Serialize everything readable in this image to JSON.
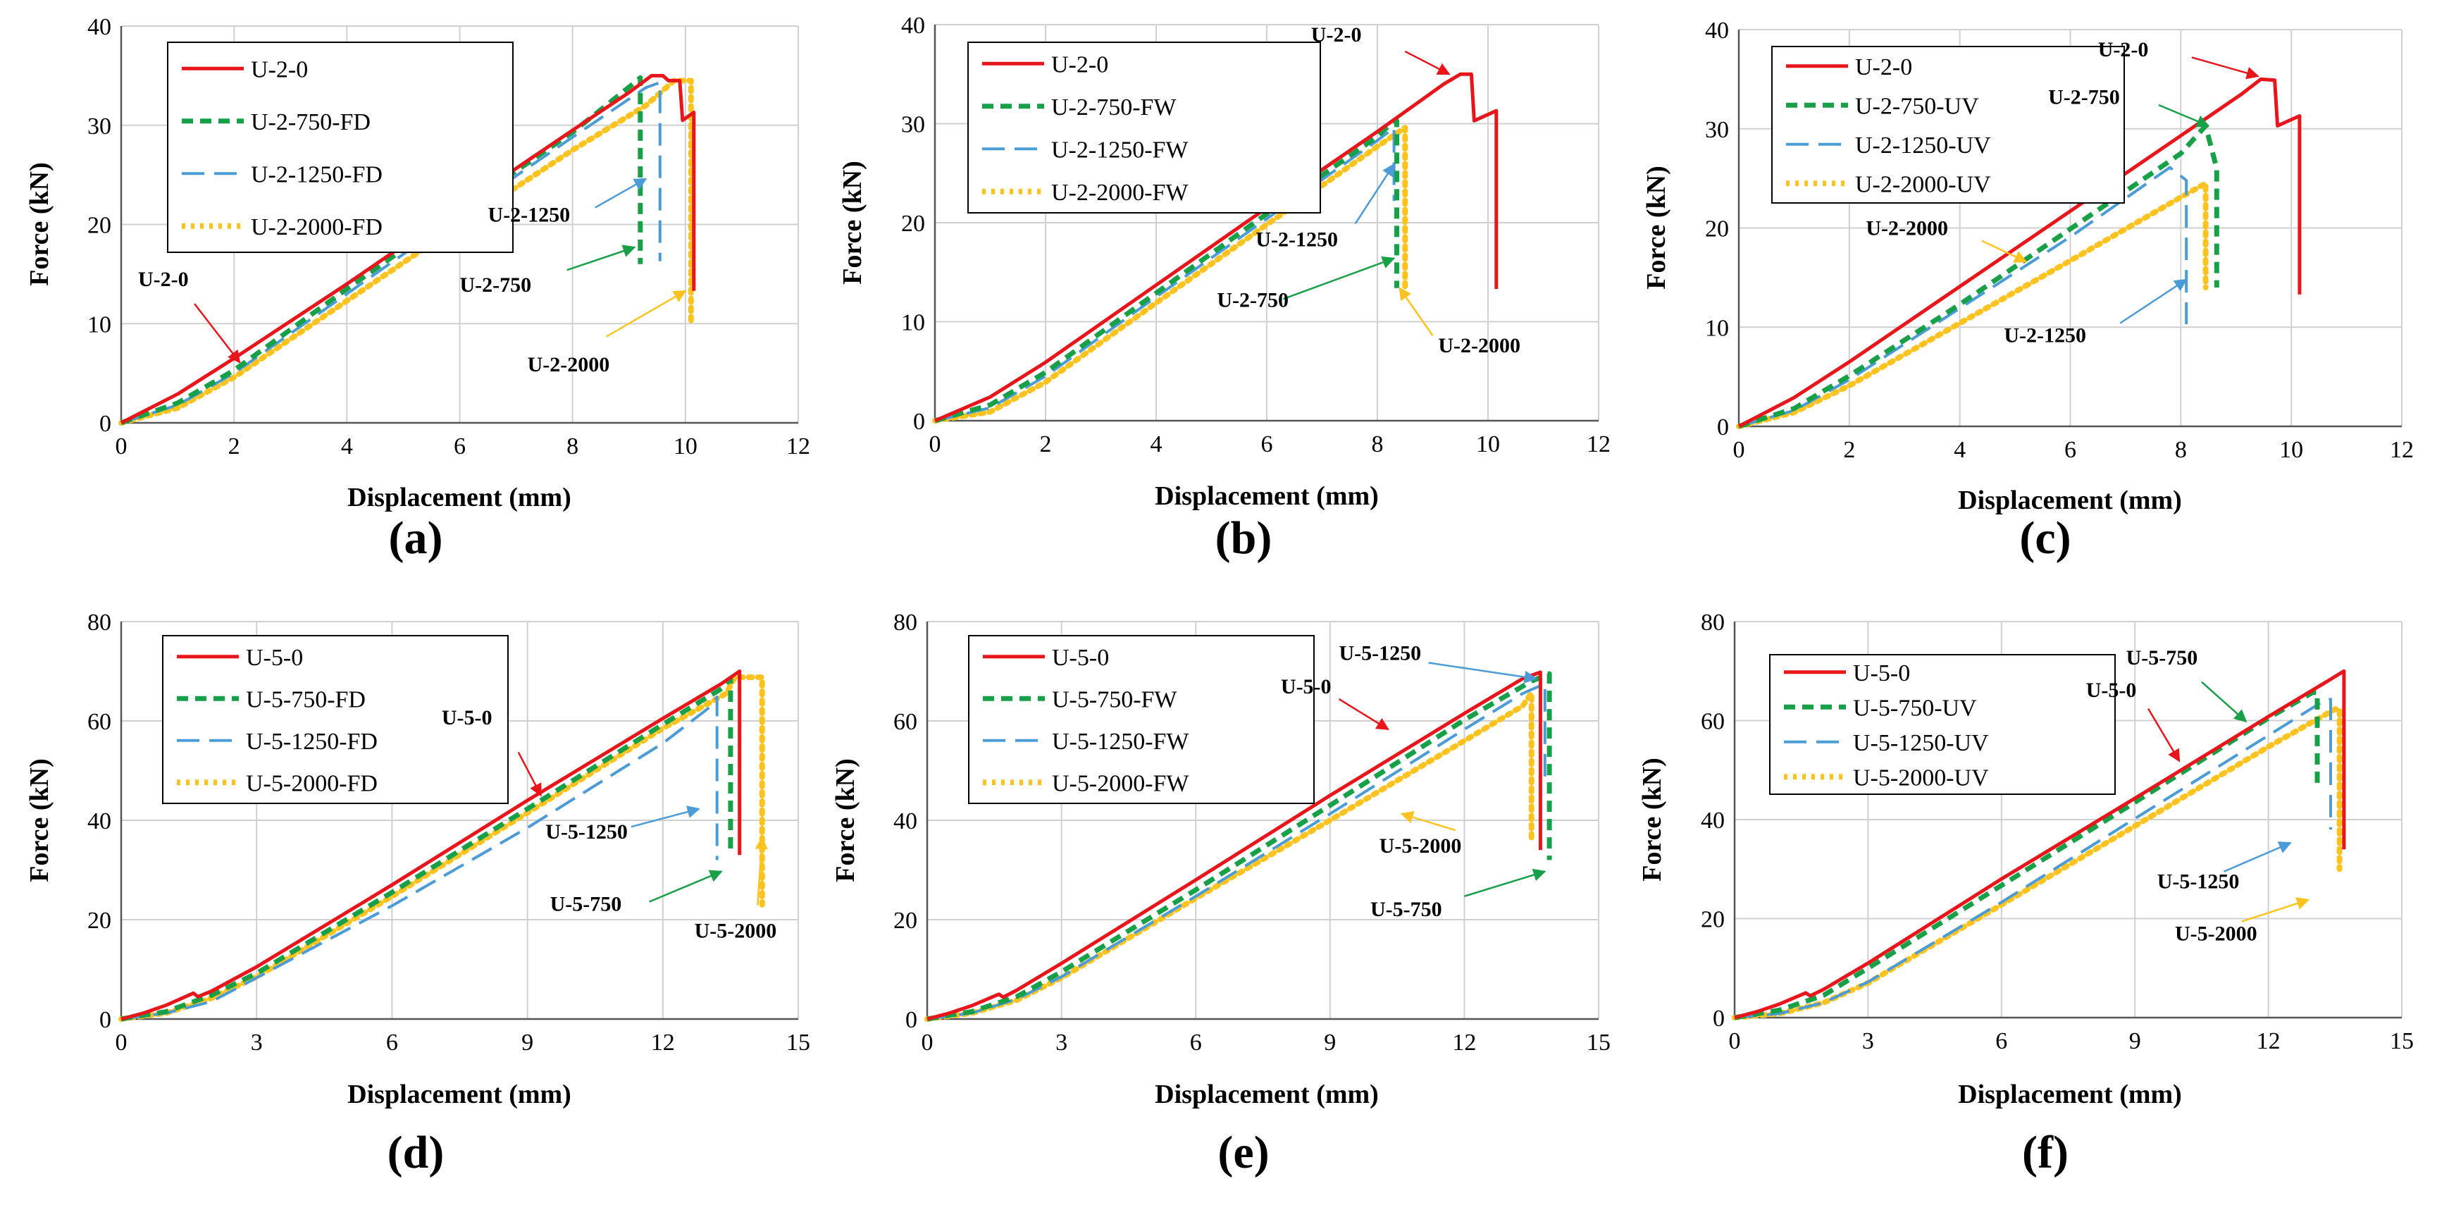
{
  "figure": {
    "xlabel": "Displacement (mm)",
    "ylabel": "Force (kN)",
    "colors": {
      "ref": "#e8151b",
      "s750": "#17a047",
      "s1250": "#4a9bd6",
      "s2000": "#fcc320"
    }
  },
  "chart_data": [
    {
      "type": "line",
      "panel_label": "(a)",
      "xlim": [
        0,
        12
      ],
      "ylim": [
        0,
        40
      ],
      "xticks": [
        "0",
        "2",
        "4",
        "6",
        "8",
        "10",
        "12"
      ],
      "yticks": [
        "0",
        "10",
        "20",
        "30",
        "40"
      ],
      "grid": true,
      "series": [
        {
          "name": "U-2-0",
          "x": [
            0,
            1,
            2,
            4,
            6,
            8,
            9.0,
            9.4,
            9.6,
            9.7,
            9.9,
            9.95,
            10.15,
            10.15
          ],
          "y": [
            0,
            2.9,
            6.5,
            14,
            21.8,
            29.5,
            33.3,
            35,
            35,
            34.5,
            34.5,
            30.5,
            31.3,
            13.3
          ]
        },
        {
          "name": "U-2-750-FD",
          "x": [
            0,
            1,
            2,
            4,
            6,
            8,
            9.1,
            9.2,
            9.2
          ],
          "y": [
            0,
            2.0,
            5.3,
            13.5,
            21.5,
            29.3,
            34.3,
            34.8,
            16
          ]
        },
        {
          "name": "U-2-1250-FD",
          "x": [
            0,
            1,
            2,
            4,
            6,
            8,
            9.3,
            9.55,
            9.55
          ],
          "y": [
            0,
            1.8,
            5.0,
            13.0,
            21.0,
            28.8,
            33.8,
            34.3,
            16.3
          ]
        },
        {
          "name": "U-2-2000-FD",
          "x": [
            0,
            1,
            2,
            4,
            6,
            8,
            9.3,
            9.8,
            10.1,
            10.1
          ],
          "y": [
            0,
            1.5,
            4.6,
            12.3,
            20,
            27.5,
            32,
            34.5,
            34.5,
            10
          ]
        }
      ],
      "annotations": [
        {
          "text": "U-2-0",
          "tx": 0.3,
          "ty": 13.8,
          "ax": 1.3,
          "ay": 12,
          "hx": 2.1,
          "hy": 6.1,
          "c": "ref"
        },
        {
          "text": "U-2-1250",
          "tx": 6.5,
          "ty": 20.3,
          "ax": 8.4,
          "ay": 21.7,
          "hx": 9.3,
          "hy": 24.6,
          "c": "s1250"
        },
        {
          "text": "U-2-750",
          "tx": 6.0,
          "ty": 13.2,
          "ax": 7.9,
          "ay": 15.4,
          "hx": 9.1,
          "hy": 17.7,
          "c": "s750"
        },
        {
          "text": "U-2-2000",
          "tx": 7.2,
          "ty": 5.2,
          "ax": 8.6,
          "ay": 8.7,
          "hx": 10.0,
          "hy": 13.3,
          "c": "s2000"
        }
      ]
    },
    {
      "type": "line",
      "panel_label": "(b)",
      "xlim": [
        0,
        12
      ],
      "ylim": [
        0,
        40
      ],
      "xticks": [
        "0",
        "2",
        "4",
        "6",
        "8",
        "10",
        "12"
      ],
      "yticks": [
        "0",
        "10",
        "20",
        "30",
        "40"
      ],
      "grid": true,
      "series": [
        {
          "name": "U-2-0",
          "x": [
            0,
            1,
            2,
            4,
            6,
            8,
            9.2,
            9.5,
            9.7,
            9.75,
            10.15,
            10.15
          ],
          "y": [
            0,
            2.4,
            5.9,
            13.7,
            21.5,
            29.2,
            34,
            35,
            35,
            30.3,
            31.3,
            13.3
          ]
        },
        {
          "name": "U-2-750-FW",
          "x": [
            0,
            1,
            2,
            4,
            6,
            8,
            8.3,
            8.35,
            8.35
          ],
          "y": [
            0,
            1.6,
            4.9,
            12.9,
            20.9,
            28.7,
            30.3,
            30.3,
            13.4
          ]
        },
        {
          "name": "U-2-1250-FW",
          "x": [
            0,
            1,
            2,
            4,
            6,
            8,
            8.3,
            8.3
          ],
          "y": [
            0,
            1.3,
            4.5,
            12.5,
            20.4,
            28.3,
            29.6,
            22.2
          ]
        },
        {
          "name": "U-2-2000-FW",
          "x": [
            0,
            1,
            2,
            4,
            6,
            8,
            8.5,
            8.5
          ],
          "y": [
            0,
            0.9,
            3.9,
            11.9,
            19.8,
            27.7,
            29.6,
            13.5
          ]
        }
      ],
      "annotations": [
        {
          "text": "U-2-0",
          "tx": 6.8,
          "ty": 38.3,
          "ax": 8.5,
          "ay": 37.3,
          "hx": 9.3,
          "hy": 35,
          "c": "ref"
        },
        {
          "text": "U-2-1250",
          "tx": 5.8,
          "ty": 17.6,
          "ax": 7.6,
          "ay": 19.9,
          "hx": 8.3,
          "hy": 25.9,
          "c": "s1250"
        },
        {
          "text": "U-2-750",
          "tx": 5.1,
          "ty": 11.5,
          "ax": 6.3,
          "ay": 12.3,
          "hx": 8.3,
          "hy": 16.4,
          "c": "s750"
        },
        {
          "text": "U-2-2000",
          "tx": 9.1,
          "ty": 6.9,
          "ax": 9.0,
          "ay": 8.6,
          "hx": 8.4,
          "hy": 13.4,
          "c": "s2000"
        }
      ]
    },
    {
      "type": "line",
      "panel_label": "(c)",
      "xlim": [
        0,
        12
      ],
      "ylim": [
        0,
        40
      ],
      "xticks": [
        "0",
        "2",
        "4",
        "6",
        "8",
        "10",
        "12"
      ],
      "yticks": [
        "0",
        "10",
        "20",
        "30",
        "40"
      ],
      "grid": true,
      "series": [
        {
          "name": "U-2-0",
          "x": [
            0,
            1,
            2,
            4,
            6,
            8,
            9.1,
            9.45,
            9.7,
            9.75,
            10.15,
            10.15
          ],
          "y": [
            0,
            2.9,
            6.5,
            14.1,
            21.7,
            29.3,
            33.5,
            35,
            34.9,
            30.3,
            31.3,
            13.3
          ]
        },
        {
          "name": "U-2-750-UV",
          "x": [
            0,
            1,
            2,
            4,
            6,
            8,
            8.45,
            8.65,
            8.65
          ],
          "y": [
            0,
            1.8,
            5.1,
            12.3,
            19.9,
            27.5,
            30.3,
            26,
            14
          ]
        },
        {
          "name": "U-2-1250-UV",
          "x": [
            0,
            1,
            2,
            4,
            6,
            7.8,
            8.1,
            8.1
          ],
          "y": [
            0,
            1.6,
            4.7,
            11.9,
            19.1,
            26.1,
            24.8,
            10.3
          ]
        },
        {
          "name": "U-2-2000-UV",
          "x": [
            0,
            1,
            2,
            4,
            6,
            8,
            8.45,
            8.45
          ],
          "y": [
            0,
            1.4,
            4.1,
            10.4,
            16.7,
            23.1,
            24.5,
            14
          ]
        }
      ],
      "annotations": [
        {
          "text": "U-2-0",
          "tx": 6.5,
          "ty": 37.3,
          "ax": 8.2,
          "ay": 37.2,
          "hx": 9.4,
          "hy": 35.3,
          "c": "ref"
        },
        {
          "text": "U-2-750",
          "tx": 5.6,
          "ty": 32.5,
          "ax": 7.6,
          "ay": 32.4,
          "hx": 8.5,
          "hy": 30.3,
          "c": "s750"
        },
        {
          "text": "U-2-2000",
          "tx": 2.3,
          "ty": 19.3,
          "ax": 4.4,
          "ay": 18.7,
          "hx": 5.2,
          "hy": 16.6,
          "c": "s2000"
        },
        {
          "text": "U-2-1250",
          "tx": 4.8,
          "ty": 8.5,
          "ax": 6.9,
          "ay": 10.4,
          "hx": 8.1,
          "hy": 14.8,
          "c": "s1250"
        }
      ]
    },
    {
      "type": "line",
      "panel_label": "(d)",
      "xlim": [
        0,
        15
      ],
      "ylim": [
        0,
        80
      ],
      "xticks": [
        "0",
        "3",
        "6",
        "9",
        "12",
        "15"
      ],
      "yticks": [
        "0",
        "20",
        "40",
        "60",
        "80"
      ],
      "grid": true,
      "series": [
        {
          "name": "U-5-0",
          "x": [
            0,
            0.5,
            1.0,
            1.6,
            1.7,
            2,
            3,
            6,
            9,
            12,
            13.3,
            13.7,
            13.7
          ],
          "y": [
            0,
            1.2,
            2.8,
            5.2,
            4.5,
            5.6,
            10.5,
            27,
            44,
            60.5,
            67.5,
            70,
            33
          ]
        },
        {
          "name": "U-5-750-FD",
          "x": [
            0,
            1,
            2,
            3,
            6,
            9,
            12,
            13.3,
            13.5,
            13.5
          ],
          "y": [
            0,
            1.5,
            4.8,
            9.2,
            25.5,
            42.3,
            59.3,
            66.5,
            68.5,
            33
          ]
        },
        {
          "name": "U-5-1250-FD",
          "x": [
            0,
            1,
            2,
            3,
            6,
            9,
            12,
            13.0,
            13.2,
            13.2
          ],
          "y": [
            0,
            1.2,
            3.5,
            8.3,
            22.8,
            38.5,
            55.5,
            62.5,
            64.8,
            32
          ]
        },
        {
          "name": "U-5-2000-FD",
          "x": [
            0,
            1,
            2,
            3,
            6,
            9,
            12,
            13.4,
            13.6,
            14.2,
            14.2
          ],
          "y": [
            0,
            1.2,
            4.2,
            8.5,
            24.7,
            41.5,
            58.5,
            65.5,
            68.8,
            68.8,
            23
          ]
        }
      ],
      "annotations": [
        {
          "text": "U-5-0",
          "tx": 7.1,
          "ty": 59.3,
          "ax": 8.8,
          "ay": 53.7,
          "hx": 9.3,
          "hy": 45,
          "c": "ref"
        },
        {
          "text": "U-5-1250",
          "tx": 9.4,
          "ty": 36.3,
          "ax": 11.3,
          "ay": 38.7,
          "hx": 12.8,
          "hy": 42.3,
          "c": "s1250"
        },
        {
          "text": "U-5-750",
          "tx": 9.5,
          "ty": 21.8,
          "ax": 11.7,
          "ay": 23.6,
          "hx": 13.3,
          "hy": 29.7,
          "c": "s750"
        },
        {
          "text": "U-5-2000",
          "tx": 12.7,
          "ty": 16.4,
          "ax": 14.1,
          "ay": 22.9,
          "hx": 14.2,
          "hy": 36.5,
          "c": "s2000"
        }
      ]
    },
    {
      "type": "line",
      "panel_label": "(e)",
      "xlim": [
        0,
        15
      ],
      "ylim": [
        0,
        80
      ],
      "xticks": [
        "0",
        "3",
        "6",
        "9",
        "12",
        "15"
      ],
      "yticks": [
        "0",
        "20",
        "40",
        "60",
        "80"
      ],
      "grid": true,
      "series": [
        {
          "name": "U-5-0",
          "x": [
            0,
            0.5,
            1.0,
            1.6,
            1.7,
            2,
            3,
            6,
            9,
            12,
            13.3,
            13.7,
            13.7
          ],
          "y": [
            0,
            1.2,
            2.7,
            5.0,
            4.4,
            5.8,
            11.2,
            28,
            45,
            61.5,
            68.5,
            69.8,
            34
          ]
        },
        {
          "name": "U-5-750-FW",
          "x": [
            0,
            1,
            2,
            3,
            6,
            9,
            12,
            13.5,
            13.9,
            13.9
          ],
          "y": [
            0,
            1.5,
            4.5,
            9.5,
            26,
            43,
            60.2,
            68,
            69.5,
            32
          ]
        },
        {
          "name": "U-5-1250-FW",
          "x": [
            0,
            1,
            2,
            3,
            6,
            9,
            12,
            13.3,
            13.8,
            13.8
          ],
          "y": [
            0,
            1.2,
            4,
            8.5,
            24.7,
            41.3,
            58.3,
            65.5,
            67.5,
            47
          ]
        },
        {
          "name": "U-5-2000-FW",
          "x": [
            0,
            1,
            2,
            3,
            6,
            9,
            12,
            13.3,
            13.5,
            13.5
          ],
          "y": [
            0,
            1.2,
            3.8,
            8.3,
            24.3,
            40,
            56,
            63,
            65.6,
            36
          ]
        }
      ],
      "annotations": [
        {
          "text": "U-5-1250",
          "tx": 9.2,
          "ty": 72.3,
          "ax": 11.2,
          "ay": 71.7,
          "hx": 13.6,
          "hy": 68.5,
          "c": "s1250"
        },
        {
          "text": "U-5-0",
          "tx": 7.9,
          "ty": 65.5,
          "ax": 9.2,
          "ay": 64.4,
          "hx": 10.3,
          "hy": 58.3,
          "c": "ref"
        },
        {
          "text": "U-5-2000",
          "tx": 10.1,
          "ty": 33.5,
          "ax": 11.8,
          "ay": 38,
          "hx": 10.6,
          "hy": 41.3,
          "c": "s2000"
        },
        {
          "text": "U-5-750",
          "tx": 9.9,
          "ty": 20.7,
          "ax": 12.0,
          "ay": 24.7,
          "hx": 13.8,
          "hy": 29.7,
          "c": "s750"
        }
      ]
    },
    {
      "type": "line",
      "panel_label": "(f)",
      "xlim": [
        0,
        15
      ],
      "ylim": [
        0,
        80
      ],
      "xticks": [
        "0",
        "3",
        "6",
        "9",
        "12",
        "15"
      ],
      "yticks": [
        "0",
        "20",
        "40",
        "60",
        "80"
      ],
      "grid": true,
      "series": [
        {
          "name": "U-5-0",
          "x": [
            0,
            0.5,
            1.0,
            1.6,
            1.7,
            2,
            3,
            6,
            9,
            12,
            13.3,
            13.7,
            13.7
          ],
          "y": [
            0,
            1.2,
            2.7,
            5.0,
            4.4,
            5.7,
            11,
            28,
            44.3,
            60.8,
            67.8,
            70,
            34
          ]
        },
        {
          "name": "U-5-750-UV",
          "x": [
            0,
            1,
            2,
            3,
            6,
            9,
            12,
            13.0,
            13.1,
            13.1
          ],
          "y": [
            0,
            1.5,
            4.5,
            10,
            26.7,
            43.5,
            60.5,
            65.7,
            65.7,
            47
          ]
        },
        {
          "name": "U-5-1250-UV",
          "x": [
            0,
            1,
            2,
            3,
            6,
            9,
            12,
            13.3,
            13.4,
            13.4
          ],
          "y": [
            0,
            0.8,
            3,
            7.2,
            23.3,
            40.2,
            57,
            64.3,
            64.3,
            38
          ]
        },
        {
          "name": "U-5-2000-UV",
          "x": [
            0,
            1,
            2,
            3,
            6,
            9,
            12,
            13.5,
            13.6,
            13.6
          ],
          "y": [
            0,
            0.8,
            3,
            7,
            22.8,
            38.7,
            54.7,
            62.3,
            62.3,
            30
          ]
        }
      ],
      "annotations": [
        {
          "text": "U-5-750",
          "tx": 8.8,
          "ty": 71.3,
          "ax": 10.5,
          "ay": 67.8,
          "hx": 11.5,
          "hy": 59.8,
          "c": "s750"
        },
        {
          "text": "U-5-0",
          "tx": 7.9,
          "ty": 64.8,
          "ax": 9.3,
          "ay": 62.4,
          "hx": 10.0,
          "hy": 51.8,
          "c": "ref"
        },
        {
          "text": "U-5-1250",
          "tx": 9.5,
          "ty": 26.1,
          "ax": 11.0,
          "ay": 29.5,
          "hx": 12.5,
          "hy": 35.3,
          "c": "s1250"
        },
        {
          "text": "U-5-2000",
          "tx": 9.9,
          "ty": 15.6,
          "ax": 11.4,
          "ay": 19.4,
          "hx": 12.9,
          "hy": 23.8,
          "c": "s2000"
        }
      ]
    }
  ]
}
